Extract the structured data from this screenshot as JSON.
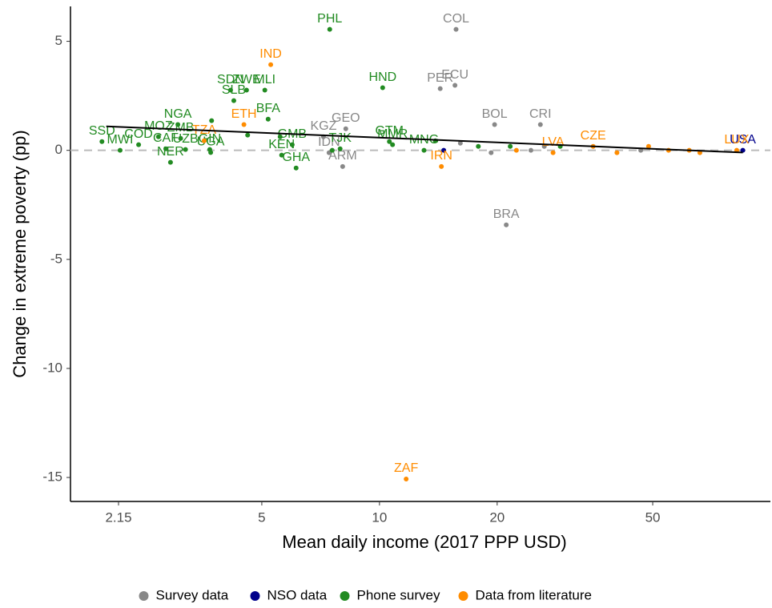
{
  "chart_data": {
    "type": "scatter",
    "xlabel": "Mean daily income (2017 PPP USD)",
    "ylabel": "Change in extreme poverty (pp)",
    "xscale": "log",
    "xlim": [
      1.62,
      100
    ],
    "ylim": [
      -16.1,
      6.6
    ],
    "xticks": [
      2.15,
      5,
      10,
      20,
      50
    ],
    "yticks": [
      -15,
      -10,
      -5,
      0,
      5
    ],
    "hline": 0,
    "legend": "bottom",
    "trend": {
      "color": "#000000",
      "x": [
        2.0,
        85
      ],
      "values": [
        1.1,
        -0.1
      ]
    },
    "series": [
      {
        "name": "Survey data",
        "color": "#888888",
        "x": [
          15.7,
          15.6,
          14.3,
          19.7,
          25.8,
          7.19,
          8.2,
          7.43,
          8.05,
          21.1,
          16.1,
          19.3,
          24.4,
          26.4,
          46.6
        ],
        "values": [
          5.55,
          2.98,
          2.83,
          1.18,
          1.18,
          0.62,
          0.99,
          -0.11,
          -0.74,
          -3.42,
          0.33,
          -0.11,
          0,
          0.18,
          0
        ],
        "labels": [
          "COL",
          "ECU",
          "PER",
          "BOL",
          "CRI",
          "KGZ",
          "GEO",
          "IDN",
          "ARM",
          "BRA",
          null,
          null,
          null,
          null,
          null
        ]
      },
      {
        "name": "NSO data",
        "color": "#00008b",
        "x": [
          85,
          14.6
        ],
        "values": [
          0,
          0
        ],
        "labels": [
          "USA",
          null
        ]
      },
      {
        "name": "Phone survey",
        "color": "#228b22",
        "x": [
          7.46,
          1.95,
          2.17,
          2.42,
          2.84,
          3.05,
          3.1,
          2.72,
          2.92,
          3.19,
          3.68,
          3.7,
          4.16,
          4.24,
          4.57,
          5.09,
          5.19,
          5.62,
          6.12,
          5.98,
          10.19,
          10.6,
          7.93,
          10.8,
          13.0,
          3.72,
          4.6,
          5.57,
          13.9,
          17.9,
          21.6,
          29.0,
          7.57
        ],
        "values": [
          5.55,
          0.4,
          0,
          0.26,
          0.07,
          1.18,
          0.55,
          0.62,
          -0.55,
          0.04,
          0.04,
          -0.1,
          2.76,
          2.28,
          2.76,
          2.76,
          1.43,
          -0.22,
          -0.81,
          0.26,
          2.87,
          0.4,
          0.07,
          0.26,
          0,
          1.36,
          0.7,
          0.62,
          0.44,
          0.18,
          0.18,
          0.18,
          0
        ],
        "labels": [
          "PHL",
          "SSD",
          "MWI",
          "COD",
          "CAF",
          "NGA",
          "ZMB",
          "MOZ",
          "NER",
          "UZB",
          "GIN",
          "UGA",
          "SDN",
          "SLB",
          "ZWE",
          "MLI",
          "BFA",
          "KEN",
          "GHA",
          "GMB",
          "HND",
          "GTM",
          "TJK",
          "MMR",
          "MNG",
          null,
          null,
          null,
          null,
          null,
          null,
          null,
          null
        ]
      },
      {
        "name": "Data from literature",
        "color": "#ff8c00",
        "x": [
          5.27,
          4.5,
          3.56,
          14.4,
          11.7,
          27.8,
          35.2,
          82,
          22.4,
          40.5,
          48.8,
          54.9,
          62,
          66
        ],
        "values": [
          3.93,
          1.18,
          0.44,
          -0.74,
          -15.07,
          -0.11,
          0.18,
          0,
          0,
          -0.11,
          0.18,
          0,
          0,
          -0.11
        ],
        "labels": [
          "IND",
          "ETH",
          "TZA",
          "IRN",
          "ZAF",
          "LVA",
          "CZE",
          "LUX",
          null,
          null,
          null,
          null,
          null,
          null
        ]
      }
    ]
  }
}
